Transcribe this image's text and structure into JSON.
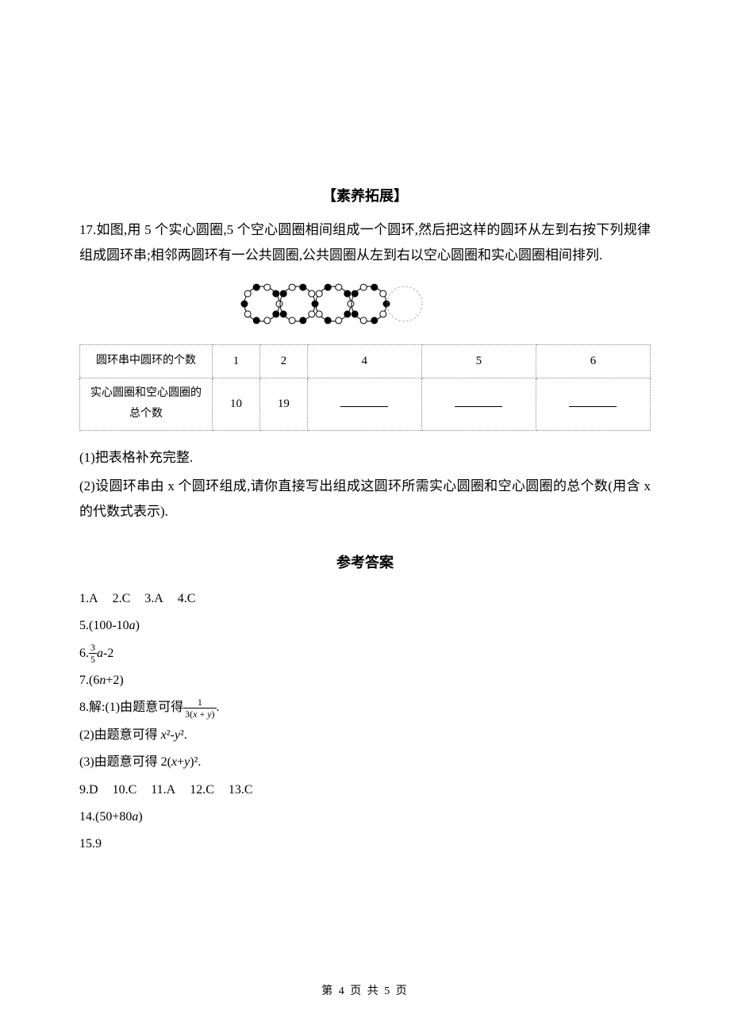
{
  "section_title": "【素养拓展】",
  "q17": {
    "number": "17.",
    "text": "如图,用 5 个实心圆圈,5 个空心圆圈相间组成一个圆环,然后把这样的圆环从左到右按下列规律组成圆环串;相邻两圆环有一公共圆圈,公共圆圈从左到右以空心圆圈和实心圆圈相间排列."
  },
  "diagram": {
    "rings": 5,
    "ring_radius": 22,
    "ring_spacing": 45,
    "dot_radius": 4,
    "colors": {
      "solid_fill": "#000000",
      "hollow_fill": "#ffffff",
      "stroke": "#000000",
      "dashed_stroke": "#999999",
      "background": "#ffffff"
    },
    "dashed_last": true,
    "dots_per_ring": 10
  },
  "table": {
    "row1_head": "圆环串中圆环的个数",
    "row1_cells": [
      "1",
      "2",
      "4",
      "5",
      "6"
    ],
    "row2_head": "实心圆圈和空心圆圈的总个数",
    "row2_cells": [
      "10",
      "19",
      "__BLANK__",
      "__BLANK__",
      "__BLANK__"
    ]
  },
  "q17_sub1": "(1)把表格补充完整.",
  "q17_sub2": "(2)设圆环串由 x 个圆环组成,请你直接写出组成这圆环所需实心圆圈和空心圆圈的总个数(用含 x 的代数式表示).",
  "answers_title": "参考答案",
  "answers": {
    "line1": [
      "1.A",
      "2.C",
      "3.A",
      "4.C"
    ],
    "a5": "5.(100-10a)",
    "a6_prefix": "6.",
    "a6_frac_num": "3",
    "a6_frac_den": "5",
    "a6_suffix": "a-2",
    "a7": "7.(6n+2)",
    "a8_intro": "8.解:(1)由题意可得",
    "a8_frac_num": "1",
    "a8_frac_den": "3(x + y)",
    "a8_suffix": ".",
    "a8_2": "(2)由题意可得 x²-y².",
    "a8_3": "(3)由题意可得 2(x+y)².",
    "line9": [
      "9.D",
      "10.C",
      "11.A",
      "12.C",
      "13.C"
    ],
    "a14": "14.(50+80a)",
    "a15": "15.9"
  },
  "footer": "第 4 页 共 5 页"
}
